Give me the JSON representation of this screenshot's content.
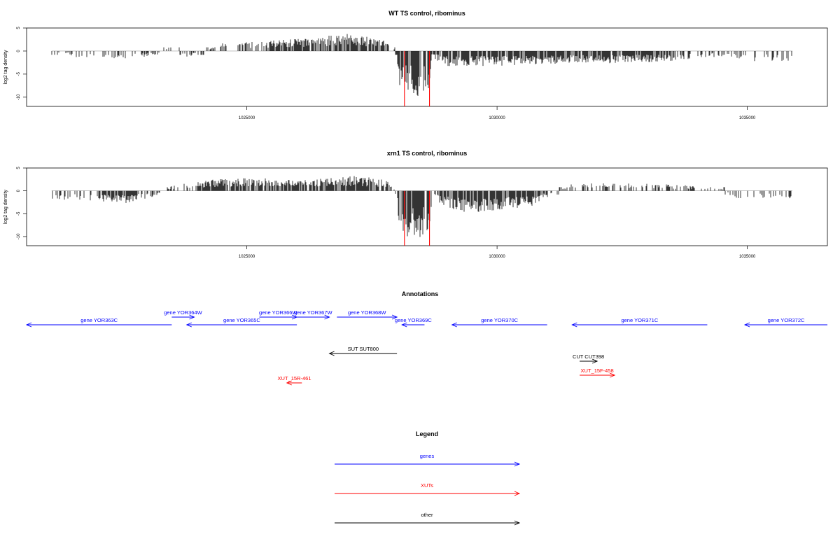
{
  "chart_data": [
    {
      "type": "bar",
      "title": "WT TS control, ribominus",
      "ylabel": "log2 tag density",
      "xlabel": "",
      "xlim": [
        1020600,
        1036600
      ],
      "ylim": [
        -12,
        5
      ],
      "yticks": [
        5,
        0,
        -5,
        -10
      ],
      "xticks": [
        1025000,
        1030000,
        1035000
      ],
      "series": [
        {
          "color": "#000000",
          "profile": [
            [
              1021100,
              0
            ],
            [
              1021700,
              -1.5
            ],
            [
              1022500,
              -1.5
            ],
            [
              1023200,
              -1
            ],
            [
              1023500,
              1.5
            ],
            [
              1023800,
              -1.5
            ],
            [
              1024500,
              1.5
            ],
            [
              1025400,
              2
            ],
            [
              1026200,
              2.5
            ],
            [
              1027000,
              3.5
            ],
            [
              1027600,
              2.5
            ],
            [
              1027900,
              1.5
            ],
            [
              1028000,
              -1
            ],
            [
              1028050,
              -8
            ],
            [
              1028300,
              -9
            ],
            [
              1028650,
              -9
            ],
            [
              1028700,
              -1
            ],
            [
              1028800,
              -2
            ],
            [
              1029000,
              -3
            ],
            [
              1030000,
              -3
            ],
            [
              1031000,
              -2.5
            ],
            [
              1032000,
              -2.5
            ],
            [
              1033500,
              -2
            ],
            [
              1034500,
              -1
            ],
            [
              1035000,
              -2
            ],
            [
              1035900,
              -2
            ]
          ]
        },
        {
          "name": "",
          "color": "#ff0000",
          "points": [
            [
              1028150,
              -12
            ],
            [
              1028650,
              -12
            ]
          ]
        }
      ]
    },
    {
      "type": "bar",
      "title": "xrn1 TS control, ribominus",
      "ylabel": "log2 tag density",
      "xlabel": "",
      "xlim": [
        1020600,
        1036600
      ],
      "ylim": [
        -12,
        5
      ],
      "yticks": [
        5,
        0,
        -5,
        -10
      ],
      "xticks": [
        1025000,
        1030000,
        1035000
      ],
      "series": [
        {
          "color": "#000000",
          "profile": [
            [
              1021100,
              -2
            ],
            [
              1022000,
              -2
            ],
            [
              1022600,
              -2.5
            ],
            [
              1023200,
              -1
            ],
            [
              1023500,
              1
            ],
            [
              1024000,
              2
            ],
            [
              1024700,
              2.5
            ],
            [
              1025500,
              2.5
            ],
            [
              1026000,
              2
            ],
            [
              1026600,
              2.5
            ],
            [
              1027200,
              3
            ],
            [
              1027900,
              2
            ],
            [
              1028000,
              -2
            ],
            [
              1028050,
              -8
            ],
            [
              1028350,
              -10
            ],
            [
              1028650,
              -9
            ],
            [
              1028700,
              -1
            ],
            [
              1028900,
              -3
            ],
            [
              1029400,
              -4.5
            ],
            [
              1030000,
              -4
            ],
            [
              1030700,
              -3
            ],
            [
              1031500,
              1.5
            ],
            [
              1032000,
              1.5
            ],
            [
              1033000,
              1.5
            ],
            [
              1034000,
              1
            ],
            [
              1034500,
              0.5
            ],
            [
              1034700,
              -1.5
            ],
            [
              1035900,
              -1.5
            ]
          ]
        },
        {
          "name": "",
          "color": "#ff0000",
          "points": [
            [
              1028150,
              -12
            ],
            [
              1028650,
              -12
            ]
          ]
        }
      ]
    }
  ],
  "annotations": {
    "title": "Annotations",
    "features": [
      {
        "label": "gene YOR363C",
        "color": "#0000ff",
        "start": 1020600,
        "end": 1023500,
        "strand": "-",
        "track": 1
      },
      {
        "label": "gene YOR364W",
        "color": "#0000ff",
        "start": 1023500,
        "end": 1023950,
        "strand": "+",
        "track": 0
      },
      {
        "label": "gene YOR365C",
        "color": "#0000ff",
        "start": 1023800,
        "end": 1026000,
        "strand": "-",
        "track": 1
      },
      {
        "label": "gene YOR366W",
        "color": "#0000ff",
        "start": 1025250,
        "end": 1026000,
        "strand": "+",
        "track": 0
      },
      {
        "label": "gene YOR367W",
        "color": "#0000ff",
        "start": 1026000,
        "end": 1026650,
        "strand": "+",
        "track": 0
      },
      {
        "label": "gene YOR368W",
        "color": "#0000ff",
        "start": 1026800,
        "end": 1028000,
        "strand": "+",
        "track": 0
      },
      {
        "label": "gene YOR369C",
        "color": "#0000ff",
        "start": 1028100,
        "end": 1028550,
        "strand": "-",
        "track": 1
      },
      {
        "label": "gene YOR370C",
        "color": "#0000ff",
        "start": 1029100,
        "end": 1031000,
        "strand": "-",
        "track": 1
      },
      {
        "label": "gene YOR371C",
        "color": "#0000ff",
        "start": 1031500,
        "end": 1034200,
        "strand": "-",
        "track": 1
      },
      {
        "label": "gene YOR372C",
        "color": "#0000ff",
        "start": 1034950,
        "end": 1036600,
        "strand": "-",
        "track": 1
      },
      {
        "label": "SUT SUT800",
        "color": "#000000",
        "start": 1026650,
        "end": 1028000,
        "strand": "-",
        "track": 2
      },
      {
        "label": "CUT CUT398",
        "color": "#000000",
        "start": 1031650,
        "end": 1032000,
        "strand": "+",
        "track": 3
      },
      {
        "label": "XUT_15F-458",
        "color": "#ff0000",
        "start": 1031650,
        "end": 1032350,
        "strand": "+",
        "track": 4
      },
      {
        "label": "XUT_15R-461",
        "color": "#ff0000",
        "start": 1025800,
        "end": 1026100,
        "strand": "-",
        "track": 5
      }
    ]
  },
  "legend": {
    "title": "Legend",
    "items": [
      {
        "label": "genes",
        "color": "#0000ff"
      },
      {
        "label": "XUTs",
        "color": "#ff0000"
      },
      {
        "label": "other",
        "color": "#000000"
      }
    ]
  }
}
